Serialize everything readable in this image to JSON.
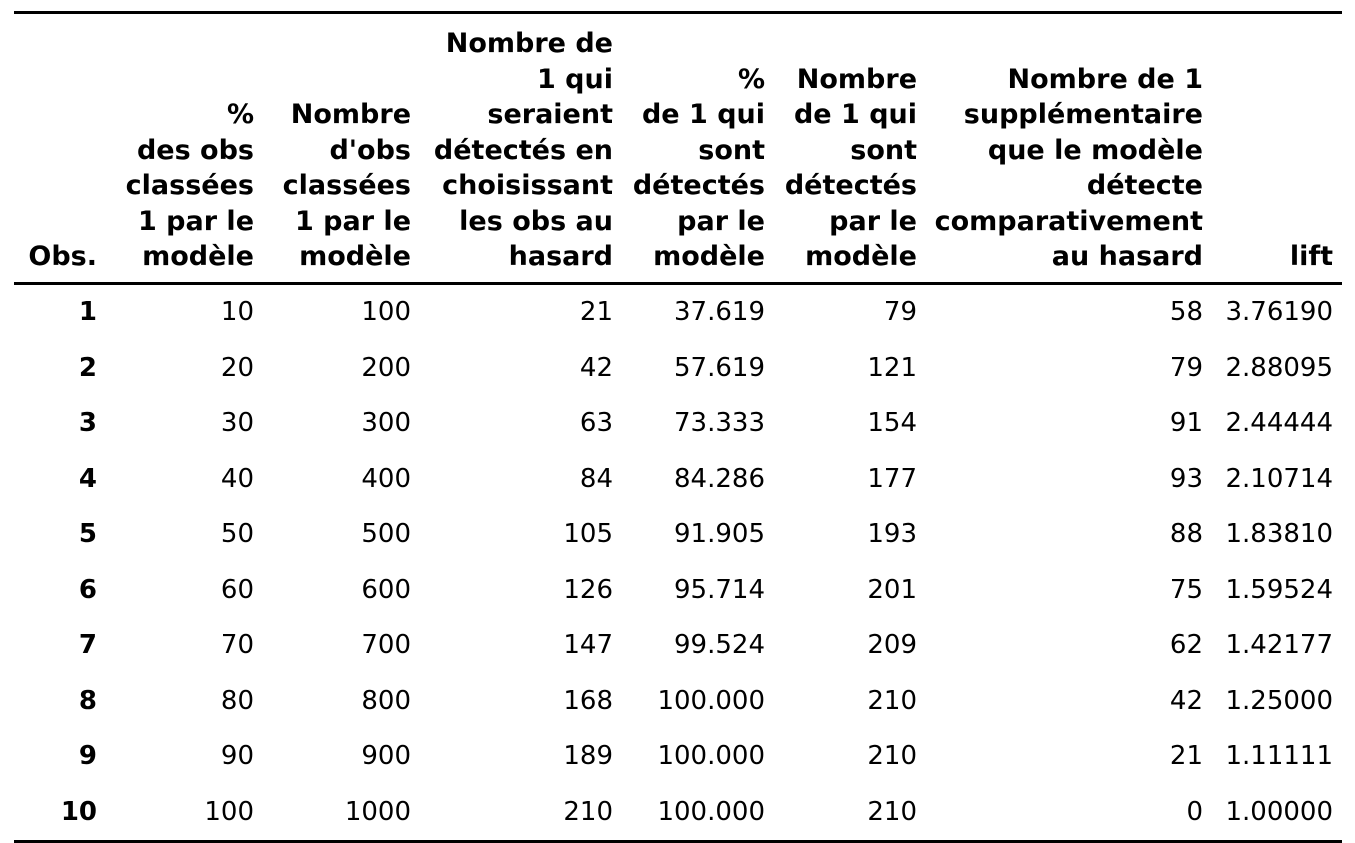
{
  "table": {
    "headers": [
      "Obs.",
      "%\ndes obs\nclassées\n1 par le\nmodèle",
      "Nombre\nd'obs\nclassées\n1 par le\nmodèle",
      "Nombre de\n1 qui\nseraient\ndétectés en\nchoisissant\nles obs au\nhasard",
      "%\nde 1 qui\nsont\ndétectés\npar le\nmodèle",
      "Nombre\nde 1 qui\nsont\ndétectés\npar le\nmodèle",
      "Nombre de 1\nsupplémentaire\nque le modèle\ndétecte\ncomparativement\nau hasard",
      "lift"
    ],
    "rows": [
      [
        "1",
        "10",
        "100",
        "21",
        "37.619",
        "79",
        "58",
        "3.76190"
      ],
      [
        "2",
        "20",
        "200",
        "42",
        "57.619",
        "121",
        "79",
        "2.88095"
      ],
      [
        "3",
        "30",
        "300",
        "63",
        "73.333",
        "154",
        "91",
        "2.44444"
      ],
      [
        "4",
        "40",
        "400",
        "84",
        "84.286",
        "177",
        "93",
        "2.10714"
      ],
      [
        "5",
        "50",
        "500",
        "105",
        "91.905",
        "193",
        "88",
        "1.83810"
      ],
      [
        "6",
        "60",
        "600",
        "126",
        "95.714",
        "201",
        "75",
        "1.59524"
      ],
      [
        "7",
        "70",
        "700",
        "147",
        "99.524",
        "209",
        "62",
        "1.42177"
      ],
      [
        "8",
        "80",
        "800",
        "168",
        "100.000",
        "210",
        "42",
        "1.25000"
      ],
      [
        "9",
        "90",
        "900",
        "189",
        "100.000",
        "210",
        "21",
        "1.11111"
      ],
      [
        "10",
        "100",
        "1000",
        "210",
        "100.000",
        "210",
        "0",
        "1.00000"
      ]
    ]
  }
}
